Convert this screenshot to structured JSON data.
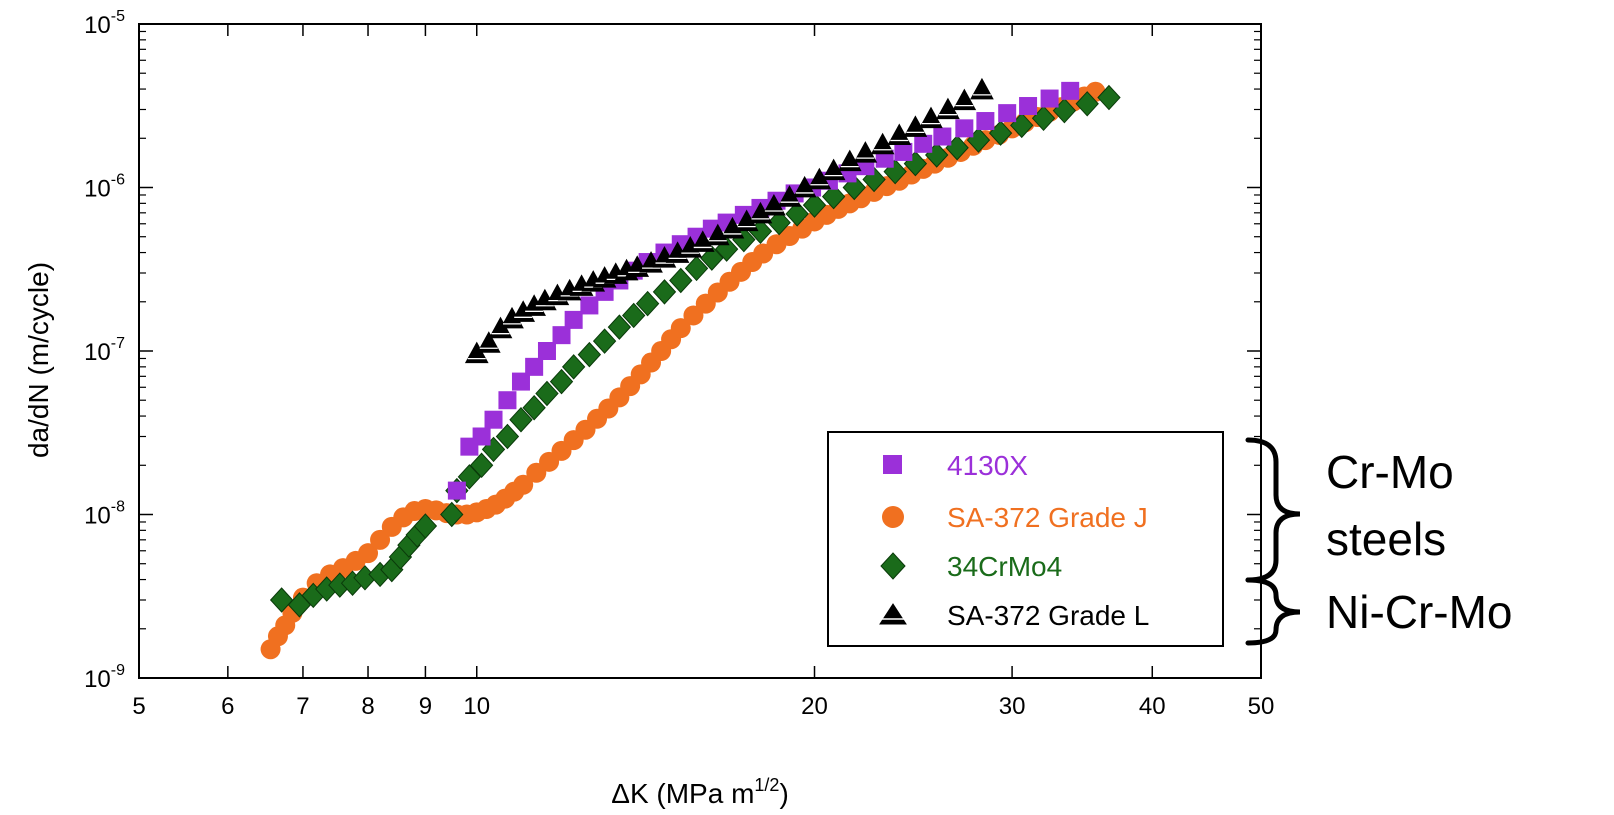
{
  "chart_data": {
    "type": "scatter",
    "xlabel": "ΔK (MPa m",
    "xlabel_sup": "1/2",
    "xlabel_end": ")",
    "ylabel": "da/dN (m/cycle)",
    "xscale": "log",
    "yscale": "log",
    "xlim": [
      5,
      50
    ],
    "ylim": [
      1e-09,
      1e-05
    ],
    "x_ticks": [
      {
        "value": 5,
        "label": "5"
      },
      {
        "value": 6,
        "label": "6"
      },
      {
        "value": 7,
        "label": "7"
      },
      {
        "value": 8,
        "label": "8"
      },
      {
        "value": 9,
        "label": "9"
      },
      {
        "value": 10,
        "label": "10"
      },
      {
        "value": 20,
        "label": "20"
      },
      {
        "value": 30,
        "label": "30"
      },
      {
        "value": 40,
        "label": "40"
      },
      {
        "value": 50,
        "label": "50"
      }
    ],
    "y_ticks": [
      {
        "value": 1e-09,
        "base": "10",
        "exp": "-9"
      },
      {
        "value": 1e-08,
        "base": "10",
        "exp": "-8"
      },
      {
        "value": 1e-07,
        "base": "10",
        "exp": "-7"
      },
      {
        "value": 1e-06,
        "base": "10",
        "exp": "-6"
      },
      {
        "value": 1e-05,
        "base": "10",
        "exp": "-5"
      }
    ],
    "grid": false,
    "legend_position": "lower-right",
    "series": [
      {
        "name": "4130X",
        "marker": "square",
        "color": "#9b30d9",
        "x": [
          9.6,
          9.85,
          10.1,
          10.35,
          10.65,
          10.95,
          11.25,
          11.55,
          11.9,
          12.2,
          12.6,
          13.0,
          13.4,
          13.8,
          14.2,
          14.7,
          15.2,
          15.7,
          16.2,
          16.7,
          17.3,
          17.9,
          18.5,
          19.2,
          19.9,
          20.6,
          21.4,
          22.2,
          23.1,
          24.0,
          25.0,
          26.0,
          27.2,
          28.4,
          29.7,
          31.0,
          32.4,
          33.8
        ],
        "y": [
          1.4e-08,
          2.6e-08,
          3e-08,
          3.8e-08,
          5e-08,
          6.5e-08,
          8e-08,
          1e-07,
          1.25e-07,
          1.55e-07,
          1.9e-07,
          2.3e-07,
          2.7e-07,
          3.1e-07,
          3.5e-07,
          4e-07,
          4.5e-07,
          5e-07,
          5.6e-07,
          6.1e-07,
          6.8e-07,
          7.5e-07,
          8.3e-07,
          9.2e-07,
          1e-06,
          1.1e-06,
          1.22e-06,
          1.35e-06,
          1.5e-06,
          1.65e-06,
          1.85e-06,
          2.05e-06,
          2.3e-06,
          2.55e-06,
          2.85e-06,
          3.15e-06,
          3.5e-06,
          3.9e-06
        ]
      },
      {
        "name": "SA-372 Grade J",
        "marker": "circle",
        "color": "#f07020",
        "x": [
          6.55,
          6.65,
          6.75,
          6.85,
          7.0,
          7.2,
          7.4,
          7.6,
          7.8,
          8.0,
          8.2,
          8.4,
          8.6,
          8.8,
          9.0,
          9.2,
          9.4,
          9.6,
          9.8,
          10.0,
          10.2,
          10.4,
          10.6,
          10.8,
          11.0,
          11.3,
          11.6,
          11.9,
          12.2,
          12.5,
          12.8,
          13.1,
          13.4,
          13.7,
          14.0,
          14.3,
          14.6,
          14.9,
          15.2,
          15.6,
          16.0,
          16.4,
          16.8,
          17.2,
          17.6,
          18.0,
          18.5,
          19.0,
          19.5,
          20.0,
          20.5,
          21.0,
          21.5,
          22.0,
          22.6,
          23.2,
          23.8,
          24.4,
          25.0,
          25.6,
          26.3,
          27.0,
          27.7,
          28.4,
          29.2,
          30.0,
          30.8,
          31.6,
          32.4,
          33.2,
          34.0,
          34.8,
          35.6
        ],
        "y": [
          1.5e-09,
          1.8e-09,
          2.1e-09,
          2.5e-09,
          3.1e-09,
          3.8e-09,
          4.3e-09,
          4.7e-09,
          5.2e-09,
          5.8e-09,
          7e-09,
          8.4e-09,
          9.6e-09,
          1.05e-08,
          1.08e-08,
          1.06e-08,
          1.02e-08,
          1e-08,
          1e-08,
          1.03e-08,
          1.08e-08,
          1.15e-08,
          1.25e-08,
          1.38e-08,
          1.52e-08,
          1.8e-08,
          2.1e-08,
          2.45e-08,
          2.85e-08,
          3.3e-08,
          3.85e-08,
          4.45e-08,
          5.2e-08,
          6.1e-08,
          7.2e-08,
          8.5e-08,
          1e-07,
          1.18e-07,
          1.38e-07,
          1.65e-07,
          1.95e-07,
          2.28e-07,
          2.65e-07,
          3.05e-07,
          3.5e-07,
          3.95e-07,
          4.5e-07,
          5.05e-07,
          5.6e-07,
          6.2e-07,
          6.8e-07,
          7.4e-07,
          8e-07,
          8.6e-07,
          9.4e-07,
          1.02e-06,
          1.1e-06,
          1.2e-06,
          1.3e-06,
          1.4e-06,
          1.52e-06,
          1.65e-06,
          1.8e-06,
          1.95e-06,
          2.1e-06,
          2.3e-06,
          2.5e-06,
          2.7e-06,
          2.9e-06,
          3.1e-06,
          3.35e-06,
          3.6e-06,
          3.85e-06
        ]
      },
      {
        "name": "34CrMo4",
        "marker": "diamond",
        "color": "#1a6b1a",
        "x": [
          6.7,
          6.95,
          7.15,
          7.35,
          7.55,
          7.75,
          7.95,
          8.2,
          8.4,
          8.55,
          8.7,
          8.85,
          9.0,
          9.5,
          9.6,
          9.85,
          10.1,
          10.35,
          10.65,
          10.95,
          11.25,
          11.55,
          11.9,
          12.2,
          12.6,
          13.0,
          13.4,
          13.8,
          14.2,
          14.7,
          15.2,
          15.7,
          16.2,
          16.7,
          17.3,
          17.9,
          18.6,
          19.3,
          20.0,
          20.8,
          21.7,
          22.6,
          23.6,
          24.6,
          25.7,
          26.8,
          28.0,
          29.3,
          30.6,
          32.0,
          33.4,
          35.0,
          36.6
        ],
        "y": [
          3e-09,
          2.8e-09,
          3.2e-09,
          3.5e-09,
          3.7e-09,
          3.8e-09,
          4.1e-09,
          4.3e-09,
          4.6e-09,
          5.5e-09,
          6.5e-09,
          7.5e-09,
          8.5e-09,
          1e-08,
          1.4e-08,
          1.7e-08,
          2e-08,
          2.5e-08,
          3e-08,
          3.8e-08,
          4.5e-08,
          5.5e-08,
          6.5e-08,
          8e-08,
          9.5e-08,
          1.15e-07,
          1.4e-07,
          1.65e-07,
          1.95e-07,
          2.3e-07,
          2.7e-07,
          3.2e-07,
          3.7e-07,
          4.2e-07,
          4.8e-07,
          5.4e-07,
          6.1e-07,
          6.9e-07,
          7.8e-07,
          8.8e-07,
          1e-06,
          1.12e-06,
          1.25e-06,
          1.4e-06,
          1.58e-06,
          1.75e-06,
          1.95e-06,
          2.15e-06,
          2.4e-06,
          2.65e-06,
          2.95e-06,
          3.25e-06,
          3.55e-06
        ]
      },
      {
        "name": "SA-372 Grade L",
        "marker": "triangle",
        "color": "#000000",
        "x": [
          10.0,
          10.25,
          10.5,
          10.75,
          11.0,
          11.25,
          11.5,
          11.8,
          12.1,
          12.4,
          12.7,
          13.0,
          13.3,
          13.6,
          13.9,
          14.3,
          14.7,
          15.1,
          15.5,
          15.9,
          16.4,
          16.9,
          17.4,
          17.9,
          18.4,
          19.0,
          19.6,
          20.2,
          20.8,
          21.5,
          22.2,
          23.0,
          23.8,
          24.6,
          25.4,
          26.3,
          27.2,
          28.2
        ],
        "y": [
          9.5e-08,
          1.1e-07,
          1.35e-07,
          1.55e-07,
          1.7e-07,
          1.85e-07,
          2e-07,
          2.15e-07,
          2.3e-07,
          2.45e-07,
          2.6e-07,
          2.75e-07,
          2.9e-07,
          3.05e-07,
          3.2e-07,
          3.4e-07,
          3.65e-07,
          3.9e-07,
          4.2e-07,
          4.55e-07,
          5e-07,
          5.5e-07,
          6.1e-07,
          6.8e-07,
          7.6e-07,
          8.6e-07,
          9.8e-07,
          1.1e-06,
          1.25e-06,
          1.42e-06,
          1.6e-06,
          1.8e-06,
          2.05e-06,
          2.3e-06,
          2.6e-06,
          2.95e-06,
          3.35e-06,
          3.9e-06
        ]
      }
    ],
    "annotations": [
      {
        "label_lines": [
          "Cr-Mo",
          "steels"
        ],
        "spans_series": [
          "4130X",
          "SA-372 Grade J",
          "34CrMo4"
        ]
      },
      {
        "label_lines": [
          "Ni-Cr-Mo"
        ],
        "spans_series": [
          "SA-372 Grade L"
        ]
      }
    ]
  }
}
